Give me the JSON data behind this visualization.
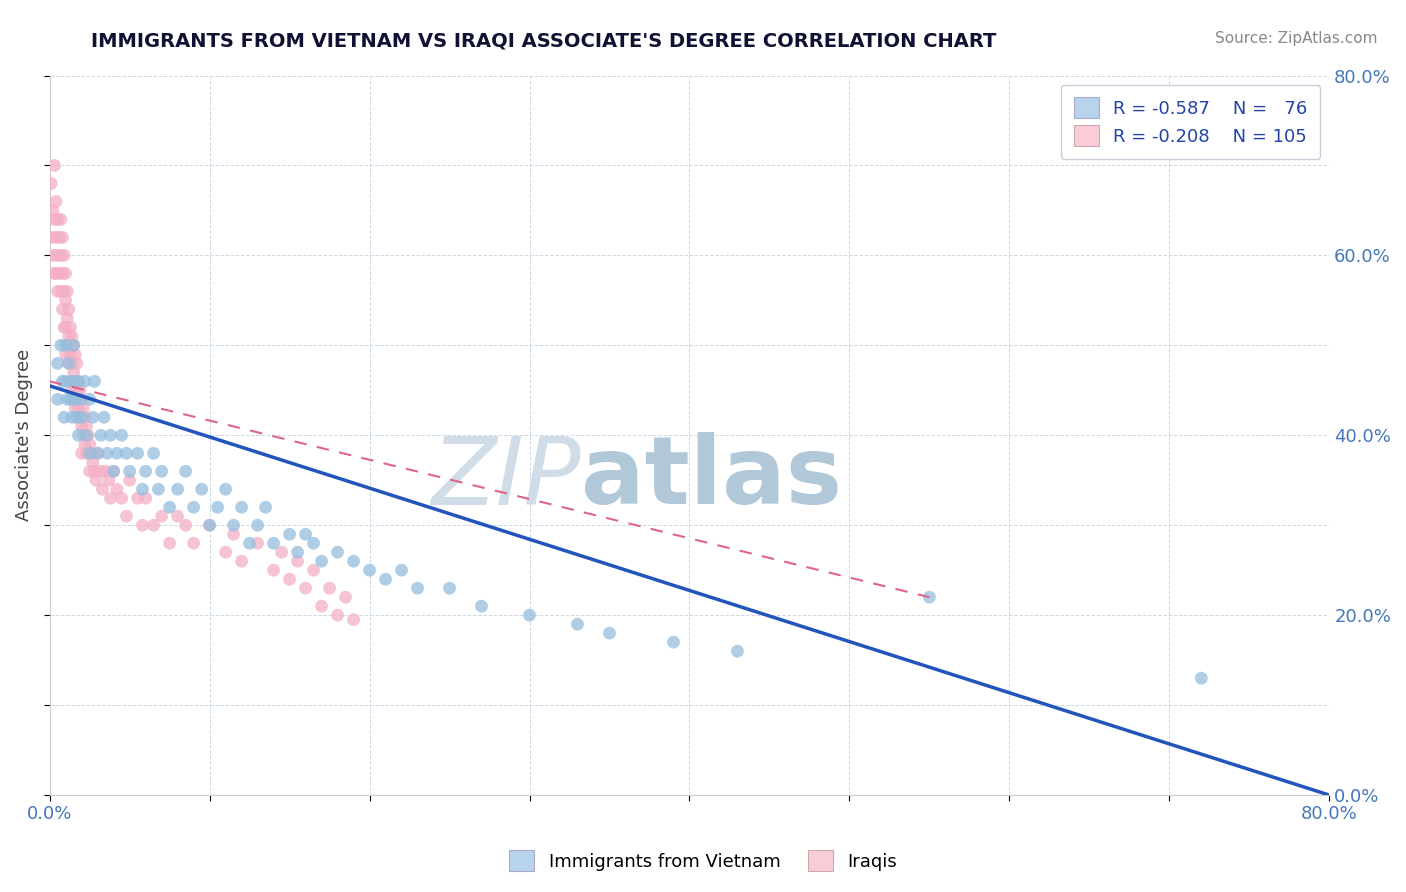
{
  "title": "IMMIGRANTS FROM VIETNAM VS IRAQI ASSOCIATE'S DEGREE CORRELATION CHART",
  "source": "Source: ZipAtlas.com",
  "ylabel": "Associate's Degree",
  "xlim": [
    0.0,
    0.8
  ],
  "ylim": [
    0.0,
    0.8
  ],
  "xticks": [
    0.0,
    0.1,
    0.2,
    0.3,
    0.4,
    0.5,
    0.6,
    0.7,
    0.8
  ],
  "yticks": [
    0.0,
    0.1,
    0.2,
    0.3,
    0.4,
    0.5,
    0.6,
    0.7,
    0.8
  ],
  "blue_scatter_color": "#94bede",
  "pink_scatter_color": "#f4afc4",
  "blue_legend_fill": "#b8d4ec",
  "pink_legend_fill": "#f9cdd8",
  "trend_blue_color": "#2255bb",
  "trend_pink_color": "#dd6688",
  "watermark_zip_color": "#d0dde8",
  "watermark_atlas_color": "#b0c8d8",
  "background": "#ffffff",
  "grid_color": "#c8d4e4",
  "title_color": "#111133",
  "source_color": "#888888",
  "ylabel_color": "#444444",
  "tick_color": "#4477bb",
  "legend_text_color": "#2244aa",
  "legend_r_color": "#cc2222",
  "vietnam_x": [
    0.005,
    0.005,
    0.007,
    0.008,
    0.009,
    0.01,
    0.01,
    0.011,
    0.012,
    0.013,
    0.013,
    0.014,
    0.015,
    0.015,
    0.016,
    0.017,
    0.018,
    0.018,
    0.019,
    0.02,
    0.022,
    0.023,
    0.025,
    0.025,
    0.027,
    0.028,
    0.03,
    0.032,
    0.034,
    0.036,
    0.038,
    0.04,
    0.042,
    0.045,
    0.048,
    0.05,
    0.055,
    0.058,
    0.06,
    0.065,
    0.068,
    0.07,
    0.075,
    0.08,
    0.085,
    0.09,
    0.095,
    0.1,
    0.105,
    0.11,
    0.115,
    0.12,
    0.125,
    0.13,
    0.135,
    0.14,
    0.15,
    0.155,
    0.16,
    0.165,
    0.17,
    0.18,
    0.19,
    0.2,
    0.21,
    0.22,
    0.23,
    0.25,
    0.27,
    0.3,
    0.33,
    0.35,
    0.39,
    0.43,
    0.55,
    0.72
  ],
  "vietnam_y": [
    0.48,
    0.44,
    0.5,
    0.46,
    0.42,
    0.5,
    0.46,
    0.44,
    0.48,
    0.46,
    0.44,
    0.42,
    0.46,
    0.5,
    0.44,
    0.42,
    0.46,
    0.4,
    0.44,
    0.42,
    0.46,
    0.4,
    0.44,
    0.38,
    0.42,
    0.46,
    0.38,
    0.4,
    0.42,
    0.38,
    0.4,
    0.36,
    0.38,
    0.4,
    0.38,
    0.36,
    0.38,
    0.34,
    0.36,
    0.38,
    0.34,
    0.36,
    0.32,
    0.34,
    0.36,
    0.32,
    0.34,
    0.3,
    0.32,
    0.34,
    0.3,
    0.32,
    0.28,
    0.3,
    0.32,
    0.28,
    0.29,
    0.27,
    0.29,
    0.28,
    0.26,
    0.27,
    0.26,
    0.25,
    0.24,
    0.25,
    0.23,
    0.23,
    0.21,
    0.2,
    0.19,
    0.18,
    0.17,
    0.16,
    0.22,
    0.13
  ],
  "iraq_x": [
    0.001,
    0.001,
    0.002,
    0.002,
    0.003,
    0.003,
    0.003,
    0.004,
    0.004,
    0.004,
    0.005,
    0.005,
    0.005,
    0.006,
    0.006,
    0.007,
    0.007,
    0.007,
    0.008,
    0.008,
    0.008,
    0.009,
    0.009,
    0.009,
    0.01,
    0.01,
    0.01,
    0.01,
    0.011,
    0.011,
    0.011,
    0.012,
    0.012,
    0.012,
    0.013,
    0.013,
    0.013,
    0.014,
    0.014,
    0.014,
    0.015,
    0.015,
    0.015,
    0.016,
    0.016,
    0.016,
    0.017,
    0.017,
    0.017,
    0.018,
    0.018,
    0.019,
    0.019,
    0.02,
    0.02,
    0.02,
    0.021,
    0.021,
    0.022,
    0.022,
    0.023,
    0.023,
    0.024,
    0.025,
    0.025,
    0.026,
    0.027,
    0.028,
    0.029,
    0.03,
    0.032,
    0.033,
    0.035,
    0.037,
    0.038,
    0.04,
    0.042,
    0.045,
    0.048,
    0.05,
    0.055,
    0.058,
    0.06,
    0.065,
    0.07,
    0.075,
    0.08,
    0.085,
    0.09,
    0.1,
    0.11,
    0.115,
    0.12,
    0.13,
    0.14,
    0.145,
    0.15,
    0.155,
    0.16,
    0.165,
    0.17,
    0.175,
    0.18,
    0.185,
    0.19
  ],
  "iraq_y": [
    0.62,
    0.68,
    0.65,
    0.6,
    0.64,
    0.7,
    0.58,
    0.66,
    0.62,
    0.58,
    0.64,
    0.6,
    0.56,
    0.62,
    0.58,
    0.64,
    0.6,
    0.56,
    0.62,
    0.58,
    0.54,
    0.6,
    0.56,
    0.52,
    0.58,
    0.55,
    0.52,
    0.49,
    0.56,
    0.53,
    0.5,
    0.54,
    0.51,
    0.48,
    0.52,
    0.49,
    0.46,
    0.51,
    0.48,
    0.45,
    0.5,
    0.47,
    0.44,
    0.49,
    0.46,
    0.43,
    0.48,
    0.45,
    0.42,
    0.46,
    0.43,
    0.45,
    0.42,
    0.44,
    0.41,
    0.38,
    0.43,
    0.4,
    0.42,
    0.39,
    0.41,
    0.38,
    0.4,
    0.39,
    0.36,
    0.38,
    0.37,
    0.36,
    0.35,
    0.38,
    0.36,
    0.34,
    0.36,
    0.35,
    0.33,
    0.36,
    0.34,
    0.33,
    0.31,
    0.35,
    0.33,
    0.3,
    0.33,
    0.3,
    0.31,
    0.28,
    0.31,
    0.3,
    0.28,
    0.3,
    0.27,
    0.29,
    0.26,
    0.28,
    0.25,
    0.27,
    0.24,
    0.26,
    0.23,
    0.25,
    0.21,
    0.23,
    0.2,
    0.22,
    0.195
  ],
  "trend_blue_x0": 0.0,
  "trend_blue_y0": 0.455,
  "trend_blue_x1": 0.8,
  "trend_blue_y1": 0.0,
  "trend_pink_x0": 0.0,
  "trend_pink_y0": 0.46,
  "trend_pink_x1": 0.55,
  "trend_pink_y1": 0.22
}
